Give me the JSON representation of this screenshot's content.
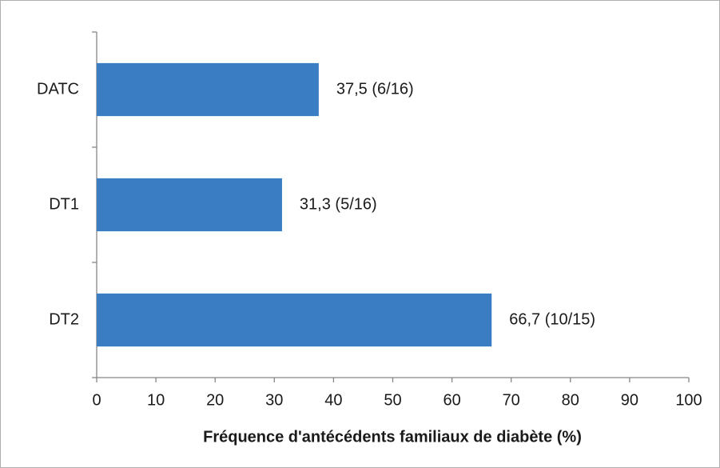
{
  "chart_data": {
    "type": "bar",
    "orientation": "horizontal",
    "xlabel": "Fréquence d'antécédents familiaux de diabète (%)",
    "categories": [
      "DATC",
      "DT1",
      "DT2"
    ],
    "values": [
      37.5,
      31.3,
      66.7
    ],
    "value_labels": [
      "37,5 (6/16)",
      "31,3 (5/16)",
      "66,7 (10/15)"
    ],
    "color": "#3a7dc2",
    "xlim": [
      0,
      100
    ],
    "xticks": [
      0,
      10,
      20,
      30,
      40,
      50,
      60,
      70,
      80,
      90,
      100
    ]
  }
}
